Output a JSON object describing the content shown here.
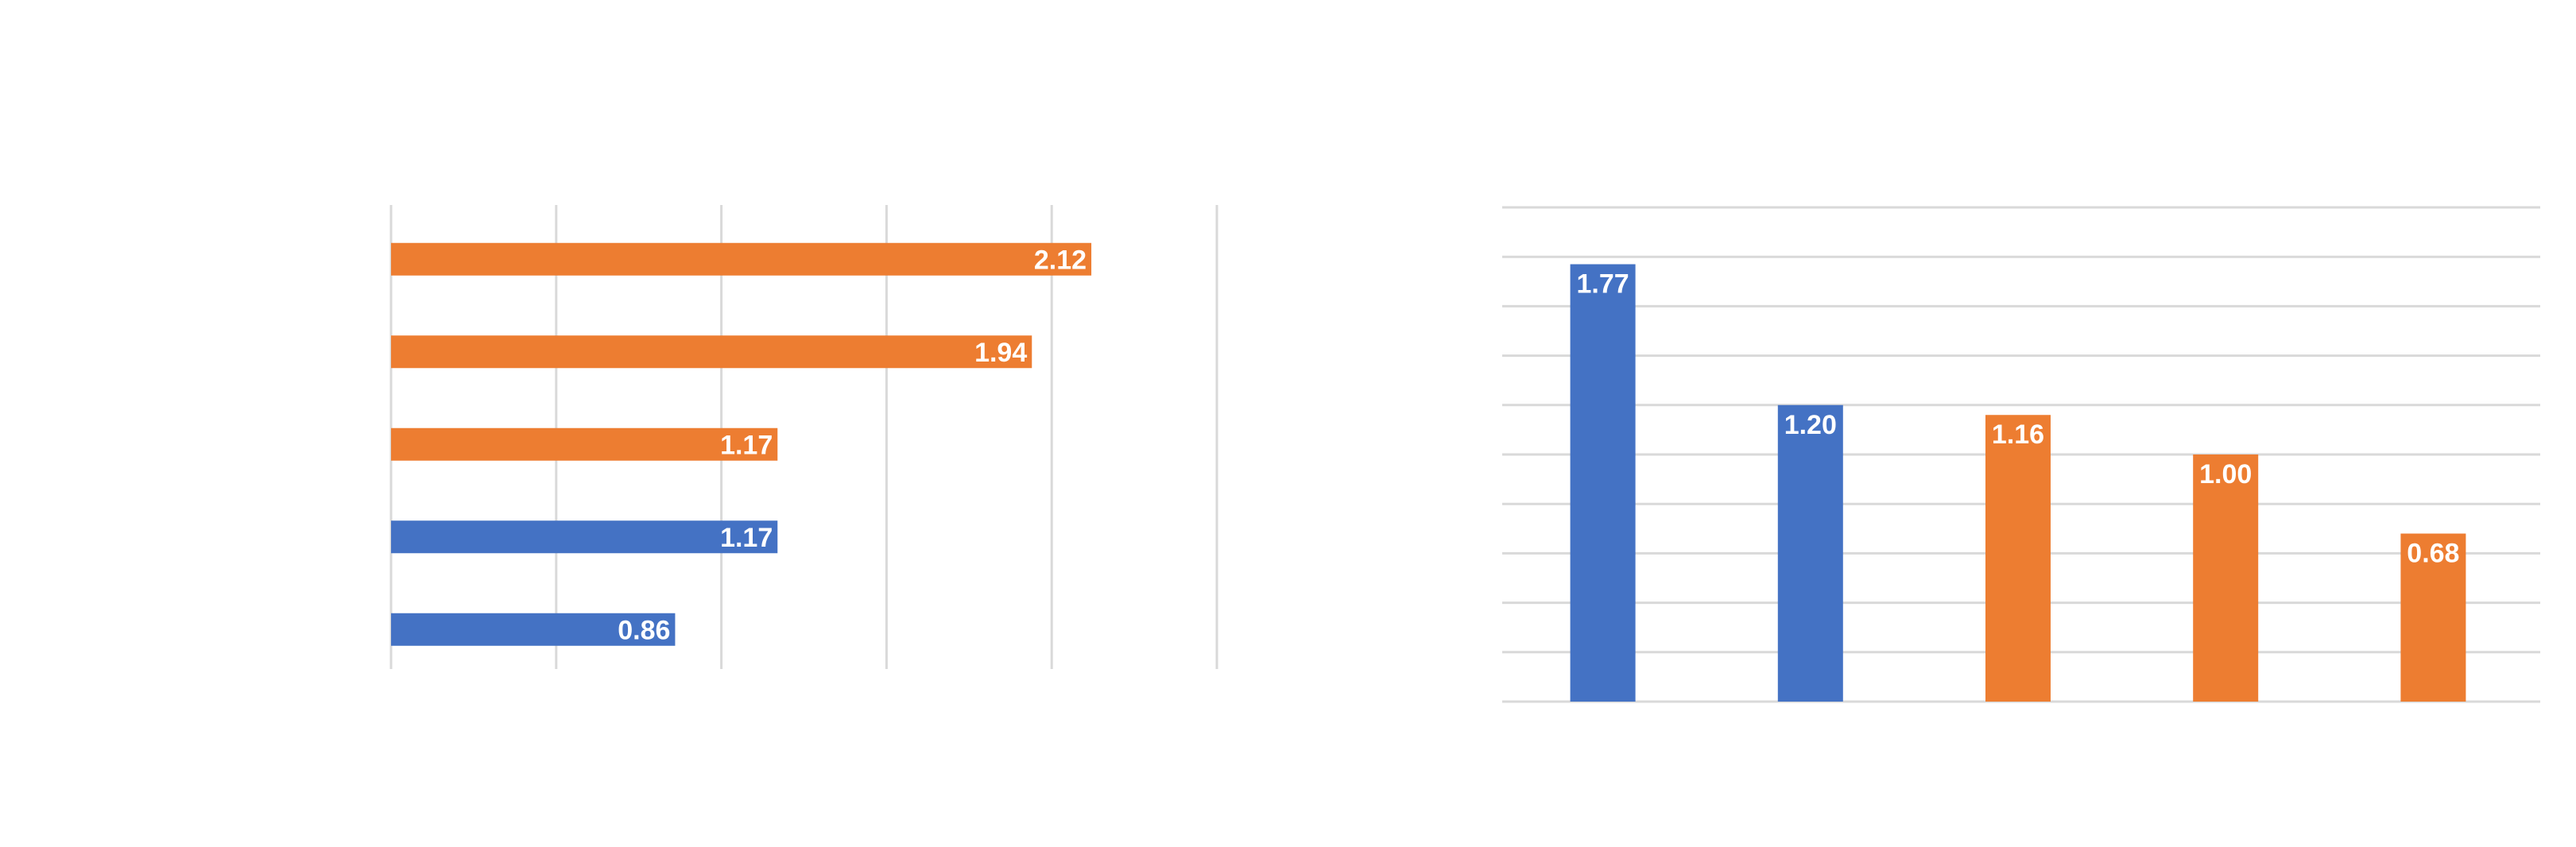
{
  "colors": {
    "blue": "#4472c4",
    "orange": "#ed7d31",
    "grid": "#d9d9d9",
    "label": "#ffffff"
  },
  "chart_data": [
    {
      "type": "bar",
      "orientation": "horizontal",
      "title": "",
      "xlabel": "",
      "ylabel": "",
      "xlim": [
        0,
        2.5
      ],
      "grid": "vertical",
      "categories": [
        "",
        "",
        "",
        "",
        ""
      ],
      "values": [
        2.12,
        1.94,
        1.17,
        1.17,
        0.86
      ],
      "colors": [
        "orange",
        "orange",
        "orange",
        "blue",
        "blue"
      ],
      "data_labels": [
        "2.12",
        "1.94",
        "1.17",
        "1.17",
        "0.86"
      ]
    },
    {
      "type": "bar",
      "orientation": "vertical",
      "title": "",
      "xlabel": "",
      "ylabel": "",
      "ylim": [
        0,
        2.0
      ],
      "grid": "horizontal",
      "categories": [
        "",
        "",
        "",
        "",
        ""
      ],
      "values": [
        1.77,
        1.2,
        1.16,
        1.0,
        0.68
      ],
      "colors": [
        "blue",
        "blue",
        "orange",
        "orange",
        "orange"
      ],
      "data_labels": [
        "1.77",
        "1.20",
        "1.16",
        "1.00",
        "0.68"
      ]
    }
  ]
}
